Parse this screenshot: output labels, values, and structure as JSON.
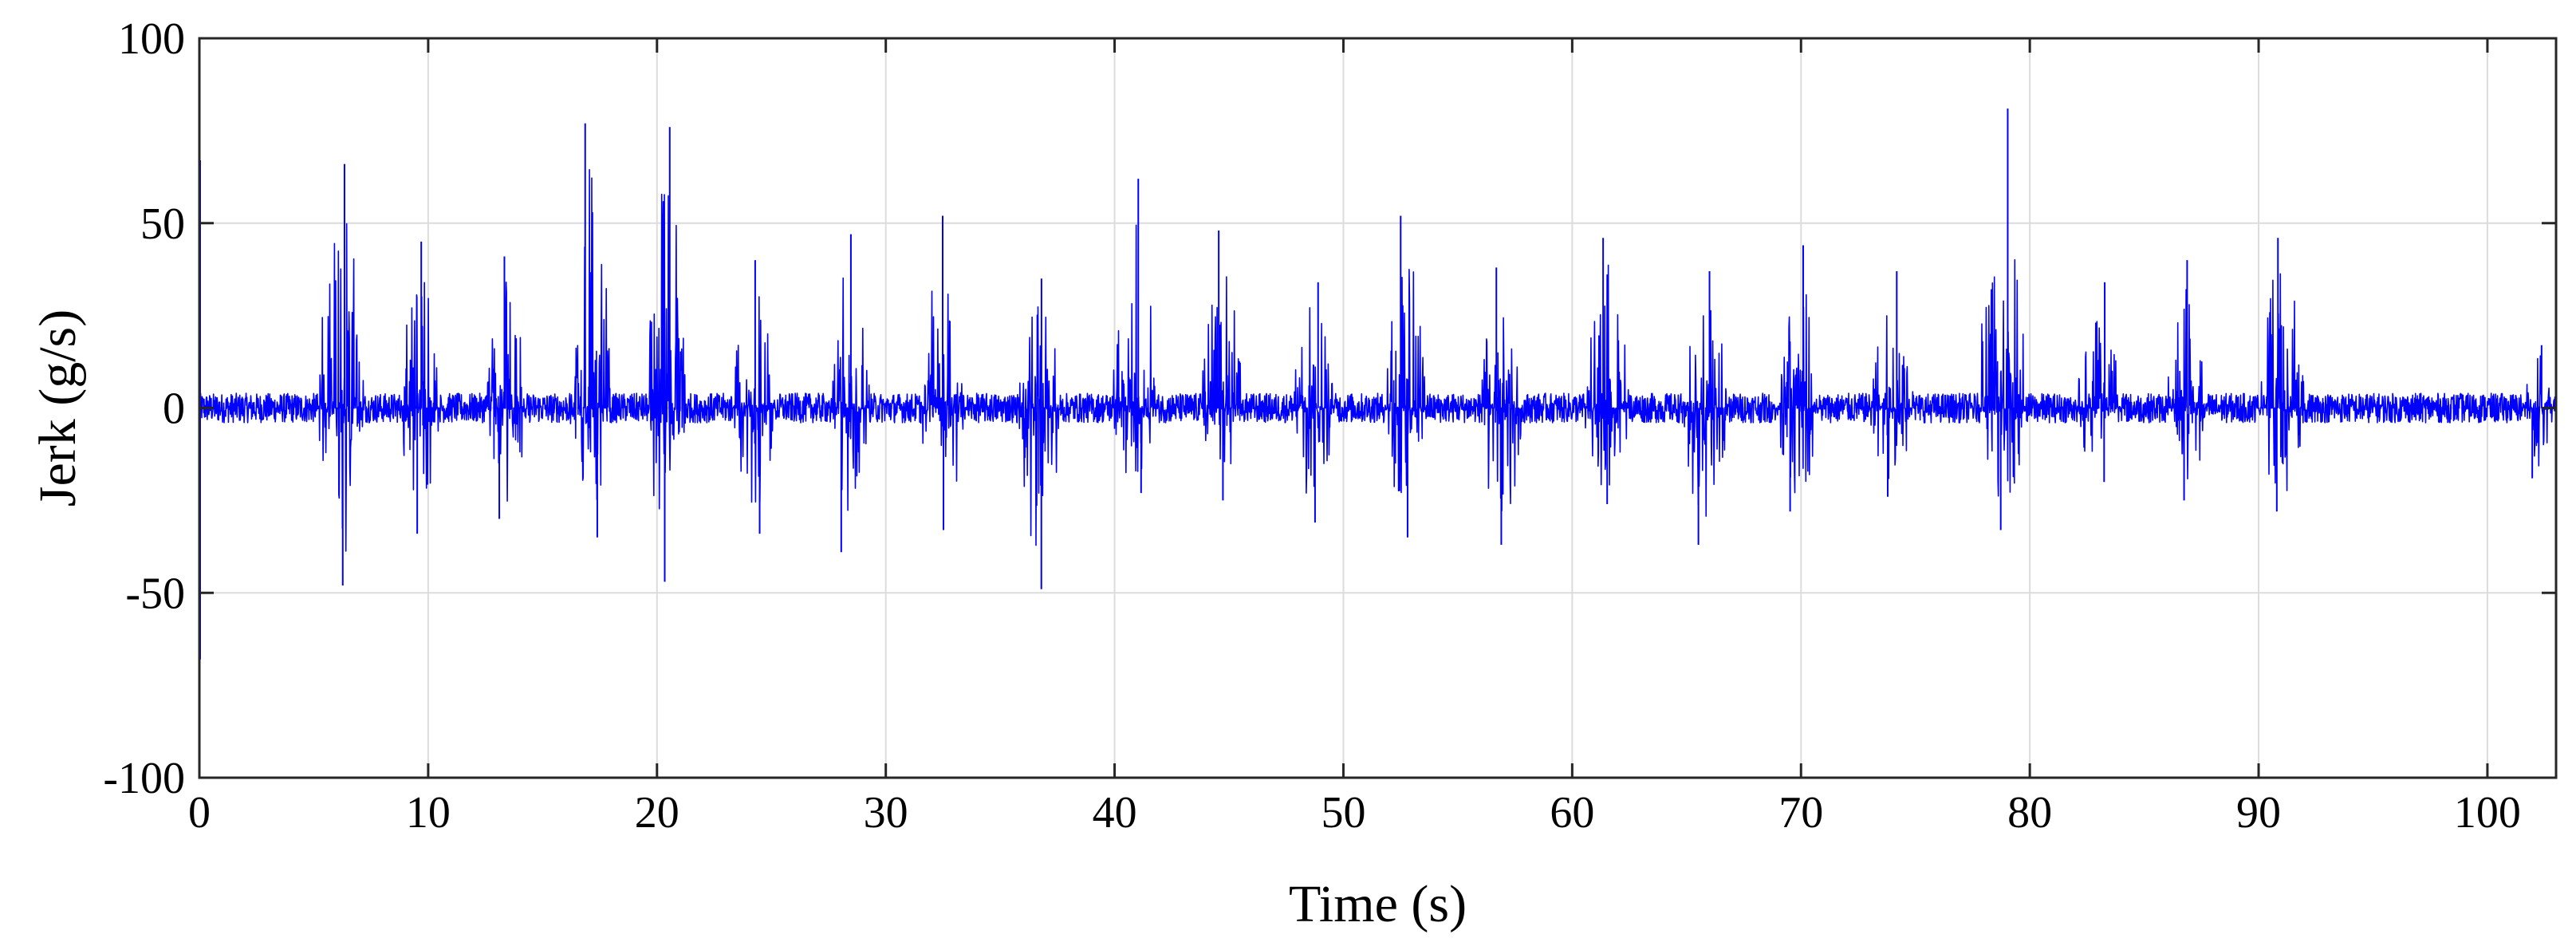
{
  "chart_data": {
    "type": "line",
    "xlabel": "Time (s)",
    "ylabel": "Jerk (g/s)",
    "xlim": [
      0,
      103
    ],
    "ylim": [
      -100,
      100
    ],
    "xticks": [
      0,
      10,
      20,
      30,
      40,
      50,
      60,
      70,
      80,
      90,
      100
    ],
    "yticks": [
      -100,
      -50,
      0,
      50,
      100
    ],
    "xtick_labels": [
      "0",
      "10",
      "20",
      "30",
      "40",
      "50",
      "60",
      "70",
      "80",
      "90",
      "100"
    ],
    "ytick_labels": [
      "-100",
      "-50",
      "0",
      "50",
      "100"
    ],
    "grid": true,
    "line_color": "#0000ff",
    "baseline_noise_amplitude": 4,
    "bursts": [
      {
        "start": 5.2,
        "end": 7.2,
        "max": 66,
        "min": -48
      },
      {
        "start": 8.8,
        "end": 10.5,
        "max": 45,
        "min": -34
      },
      {
        "start": 12.5,
        "end": 14.3,
        "max": 41,
        "min": -30
      },
      {
        "start": 16.2,
        "end": 18.0,
        "max": 77,
        "min": -35
      },
      {
        "start": 19.6,
        "end": 21.3,
        "max": 76,
        "min": -47
      },
      {
        "start": 23.3,
        "end": 25.2,
        "max": 40,
        "min": -34
      },
      {
        "start": 27.5,
        "end": 29.3,
        "max": 47,
        "min": -39
      },
      {
        "start": 31.5,
        "end": 33.5,
        "max": 52,
        "min": -33
      },
      {
        "start": 35.8,
        "end": 37.6,
        "max": 35,
        "min": -49
      },
      {
        "start": 39.9,
        "end": 41.8,
        "max": 62,
        "min": -23
      },
      {
        "start": 43.8,
        "end": 45.6,
        "max": 48,
        "min": -25
      },
      {
        "start": 47.8,
        "end": 49.6,
        "max": 34,
        "min": -31
      },
      {
        "start": 51.8,
        "end": 53.6,
        "max": 52,
        "min": -35
      },
      {
        "start": 56.0,
        "end": 57.8,
        "max": 38,
        "min": -37
      },
      {
        "start": 60.5,
        "end": 62.5,
        "max": 46,
        "min": -26
      },
      {
        "start": 64.8,
        "end": 66.8,
        "max": 37,
        "min": -37
      },
      {
        "start": 68.8,
        "end": 70.8,
        "max": 44,
        "min": -28
      },
      {
        "start": 73.0,
        "end": 75.0,
        "max": 37,
        "min": -24
      },
      {
        "start": 77.8,
        "end": 79.8,
        "max": 81,
        "min": -33
      },
      {
        "start": 82.0,
        "end": 84.0,
        "max": 34,
        "min": -20
      },
      {
        "start": 86.0,
        "end": 87.8,
        "max": 40,
        "min": -25
      },
      {
        "start": 90.0,
        "end": 92.0,
        "max": 46,
        "min": -28
      },
      {
        "start": 101.5,
        "end": 103.0,
        "max": 17,
        "min": -19
      }
    ],
    "edge_spikes": [
      {
        "x": 0.0,
        "max": 67,
        "min": -68
      }
    ]
  }
}
